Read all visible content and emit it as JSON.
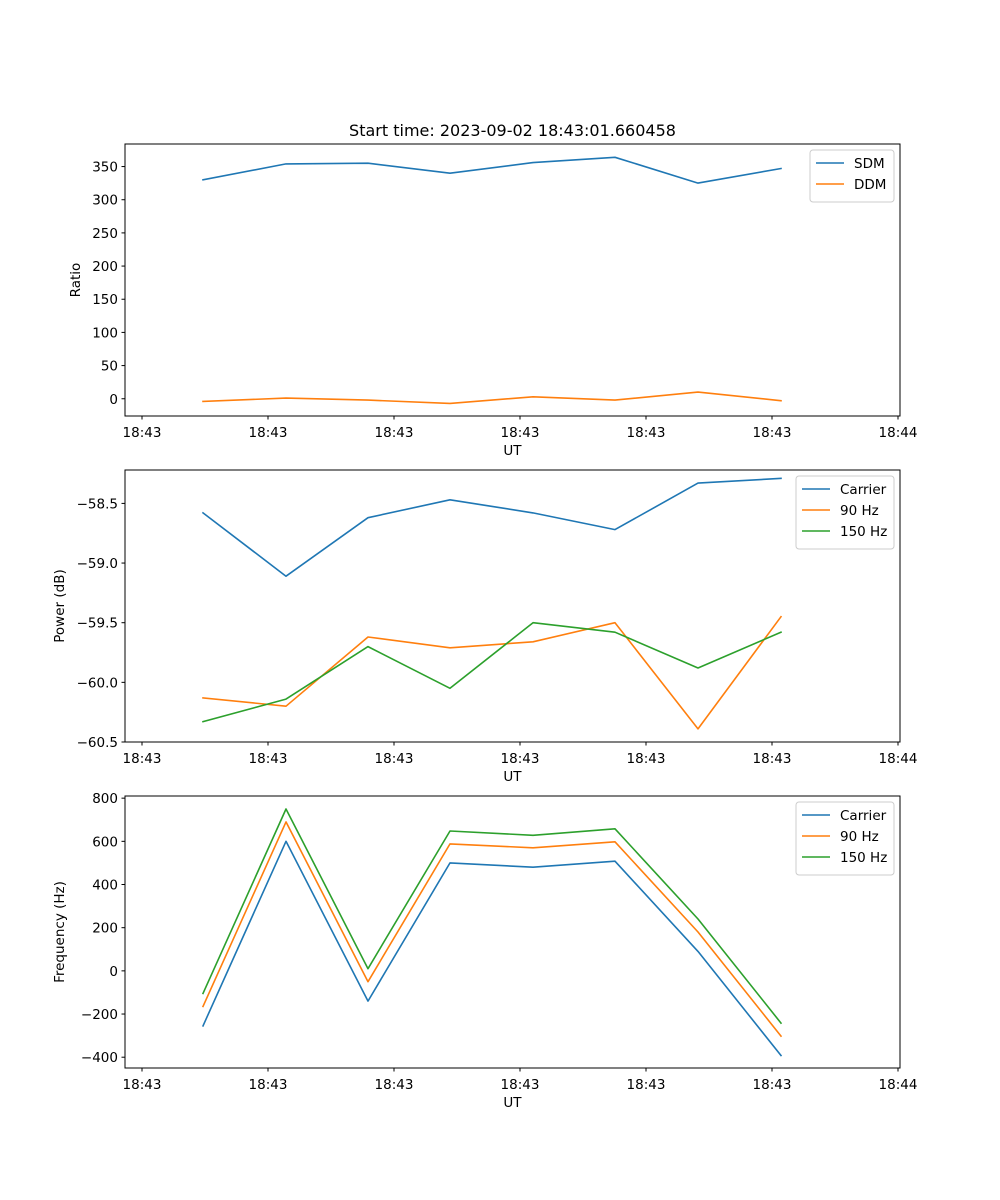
{
  "figure_title": "Start time: 2023-09-02 18:43:01.660458",
  "chart_data": [
    {
      "type": "line",
      "title": "Start time: 2023-09-02 18:43:01.660458",
      "xlabel": "UT",
      "ylabel": "Ratio",
      "x": [
        0,
        1,
        2,
        3,
        4,
        5,
        6,
        7
      ],
      "x_tick_labels": [
        "18:43",
        "18:43",
        "18:43",
        "18:43",
        "18:43",
        "18:43",
        "18:44"
      ],
      "ylim": [
        -26,
        384
      ],
      "yticks": [
        0,
        50,
        100,
        150,
        200,
        250,
        300,
        350
      ],
      "legend_position": "top-right",
      "series": [
        {
          "name": "SDM",
          "color": "#1f77b4",
          "values": [
            330,
            354,
            355,
            340,
            356,
            364,
            325,
            347
          ]
        },
        {
          "name": "DDM",
          "color": "#ff7f0e",
          "values": [
            -4,
            1,
            -2,
            -7,
            3,
            -2,
            10,
            -3
          ]
        }
      ]
    },
    {
      "type": "line",
      "title": "",
      "xlabel": "UT",
      "ylabel": "Power (dB)",
      "x": [
        0,
        1,
        2,
        3,
        4,
        5,
        6,
        7
      ],
      "x_tick_labels": [
        "18:43",
        "18:43",
        "18:43",
        "18:43",
        "18:43",
        "18:43",
        "18:44"
      ],
      "ylim": [
        -60.5,
        -58.22
      ],
      "yticks": [
        -60.5,
        -60.0,
        -59.5,
        -59.0,
        -58.5
      ],
      "ytick_labels": [
        "−60.5",
        "−60.0",
        "−59.5",
        "−59.0",
        "−58.5"
      ],
      "legend_position": "top-right",
      "series": [
        {
          "name": "Carrier",
          "color": "#1f77b4",
          "values": [
            -58.58,
            -59.11,
            -58.62,
            -58.47,
            -58.58,
            -58.72,
            -58.33,
            -58.29
          ]
        },
        {
          "name": "90 Hz",
          "color": "#ff7f0e",
          "values": [
            -60.13,
            -60.2,
            -59.62,
            -59.71,
            -59.66,
            -59.5,
            -60.39,
            -59.45
          ]
        },
        {
          "name": "150 Hz",
          "color": "#2ca02c",
          "values": [
            -60.33,
            -60.14,
            -59.7,
            -60.05,
            -59.5,
            -59.58,
            -59.88,
            -59.58
          ]
        }
      ]
    },
    {
      "type": "line",
      "title": "",
      "xlabel": "UT",
      "ylabel": "Frequency (Hz)",
      "x": [
        0,
        1,
        2,
        3,
        4,
        5,
        6,
        7
      ],
      "x_tick_labels": [
        "18:43",
        "18:43",
        "18:43",
        "18:43",
        "18:43",
        "18:43",
        "18:44"
      ],
      "ylim": [
        -450,
        810
      ],
      "yticks": [
        -400,
        -200,
        0,
        200,
        400,
        600,
        800
      ],
      "ytick_labels": [
        "−400",
        "−200",
        "0",
        "200",
        "400",
        "600",
        "800"
      ],
      "legend_position": "top-right",
      "series": [
        {
          "name": "Carrier",
          "color": "#1f77b4",
          "values": [
            -255,
            600,
            -140,
            500,
            480,
            508,
            90,
            -392
          ]
        },
        {
          "name": "90 Hz",
          "color": "#ff7f0e",
          "values": [
            -165,
            690,
            -50,
            588,
            570,
            598,
            180,
            -302
          ]
        },
        {
          "name": "150 Hz",
          "color": "#2ca02c",
          "values": [
            -105,
            750,
            10,
            648,
            628,
            658,
            240,
            -242
          ]
        }
      ]
    }
  ]
}
